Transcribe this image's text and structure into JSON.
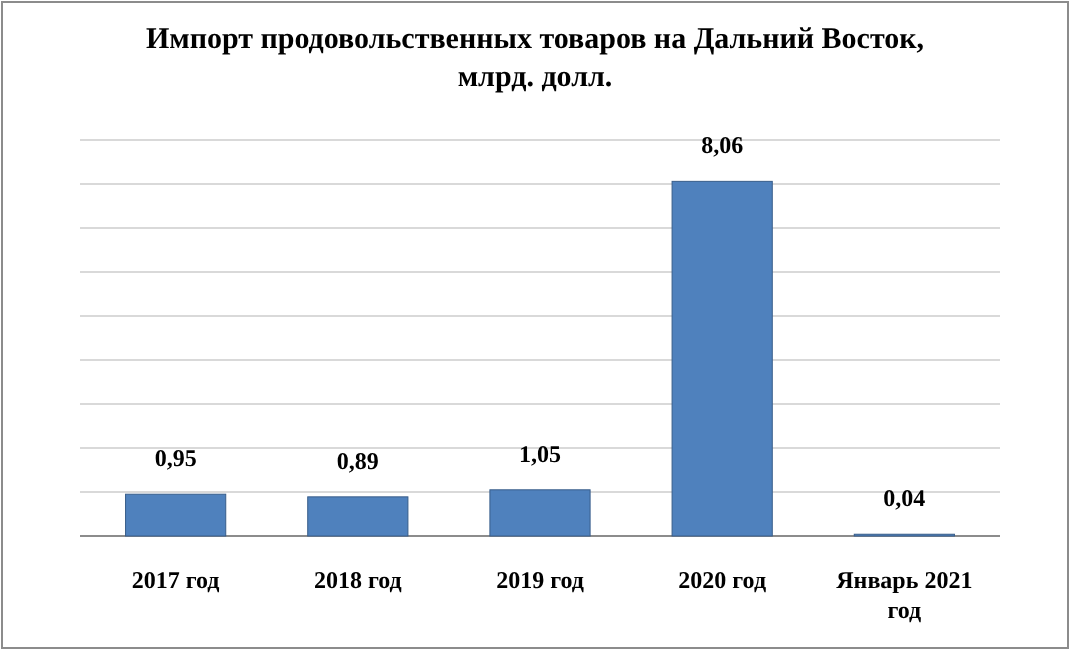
{
  "chart_data": {
    "type": "bar",
    "title": "Импорт продовольственных товаров на Дальний Восток, млрд. долл.",
    "categories": [
      "2017 год",
      "2018 год",
      "2019 год",
      "2020 год",
      "Январь 2021 год"
    ],
    "values": [
      0.95,
      0.89,
      1.05,
      8.06,
      0.04
    ],
    "value_labels": [
      "0,95",
      "0,89",
      "1,05",
      "8,06",
      "0,04"
    ],
    "color": "#4f81bd",
    "ylim": [
      0,
      9
    ],
    "yticks": [
      {
        "value": 0,
        "label": null
      },
      {
        "value": 1,
        "label": null
      },
      {
        "value": 2,
        "label": null
      },
      {
        "value": 3,
        "label": null
      },
      {
        "value": 4,
        "label": null
      },
      {
        "value": 5,
        "label": null
      },
      {
        "value": 6,
        "label": null
      },
      {
        "value": 7,
        "label": null
      },
      {
        "value": 8,
        "label": null
      },
      {
        "value": 9,
        "label": null
      }
    ],
    "grid": true
  }
}
